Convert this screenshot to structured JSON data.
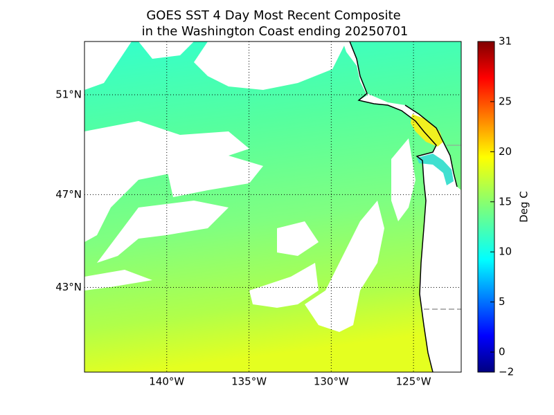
{
  "map": {
    "title": [
      "GOES SST 4 Day Most Recent Composite",
      "in the Washington Coast ending 20250701"
    ],
    "lonlim": [
      -145,
      -122.1
    ],
    "latlim": [
      39.1,
      53.0
    ],
    "lon_ticks": [
      {
        "value": -140,
        "label": "140°W"
      },
      {
        "value": -135,
        "label": "135°W"
      },
      {
        "value": -130,
        "label": "130°W"
      },
      {
        "value": -125,
        "label": "125°W"
      }
    ],
    "lat_ticks": [
      {
        "value": 43,
        "label": "43°N"
      },
      {
        "value": 47,
        "label": "47°N"
      },
      {
        "value": 51,
        "label": "51°N"
      }
    ],
    "colorbar": {
      "label": "Deg C",
      "lim": [
        -2,
        31
      ],
      "ticks": [
        {
          "value": -2,
          "label": "−2"
        },
        0,
        5,
        10,
        15,
        20,
        25,
        31
      ]
    }
  }
}
